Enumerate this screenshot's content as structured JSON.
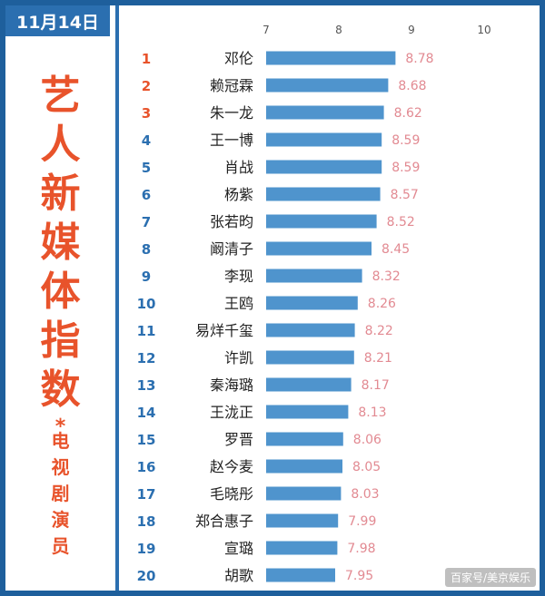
{
  "date_label": "11月14日",
  "title_chars": [
    "艺",
    "人",
    "新",
    "媒",
    "体",
    "指",
    "数"
  ],
  "title_separator": "*",
  "subtitle_chars": [
    "电",
    "视",
    "剧",
    "演",
    "员"
  ],
  "watermark": "百家号/美京娱乐",
  "colors": {
    "frame": "#1e5f9c",
    "accent_blue": "#2b6fb0",
    "bar": "#4f94cd",
    "rank_red": "#e8532b",
    "rank_blue": "#2b6fb0",
    "value_text": "#e28a92"
  },
  "chart_data": {
    "type": "bar",
    "orientation": "horizontal",
    "x_ticks": [
      7,
      8,
      9,
      10
    ],
    "xlim": [
      7,
      10
    ],
    "grid": false,
    "items": [
      {
        "rank": "1",
        "name": "邓伦",
        "value": 8.78
      },
      {
        "rank": "2",
        "name": "赖冠霖",
        "value": 8.68
      },
      {
        "rank": "3",
        "name": "朱一龙",
        "value": 8.62
      },
      {
        "rank": "4",
        "name": "王一博",
        "value": 8.59
      },
      {
        "rank": "5",
        "name": "肖战",
        "value": 8.59
      },
      {
        "rank": "6",
        "name": "杨紫",
        "value": 8.57
      },
      {
        "rank": "7",
        "name": "张若昀",
        "value": 8.52
      },
      {
        "rank": "8",
        "name": "阚清子",
        "value": 8.45
      },
      {
        "rank": "9",
        "name": "李现",
        "value": 8.32
      },
      {
        "rank": "10",
        "name": "王鸥",
        "value": 8.26
      },
      {
        "rank": "11",
        "name": "易烊千玺",
        "value": 8.22
      },
      {
        "rank": "12",
        "name": "许凯",
        "value": 8.21
      },
      {
        "rank": "13",
        "name": "秦海璐",
        "value": 8.17
      },
      {
        "rank": "14",
        "name": "王泷正",
        "value": 8.13
      },
      {
        "rank": "15",
        "name": "罗晋",
        "value": 8.06
      },
      {
        "rank": "16",
        "name": "赵今麦",
        "value": 8.05
      },
      {
        "rank": "17",
        "name": "毛晓彤",
        "value": 8.03
      },
      {
        "rank": "18",
        "name": "郑合惠子",
        "value": 7.99
      },
      {
        "rank": "19",
        "name": "宣璐",
        "value": 7.98
      },
      {
        "rank": "20",
        "name": "胡歌",
        "value": 7.95
      }
    ]
  }
}
